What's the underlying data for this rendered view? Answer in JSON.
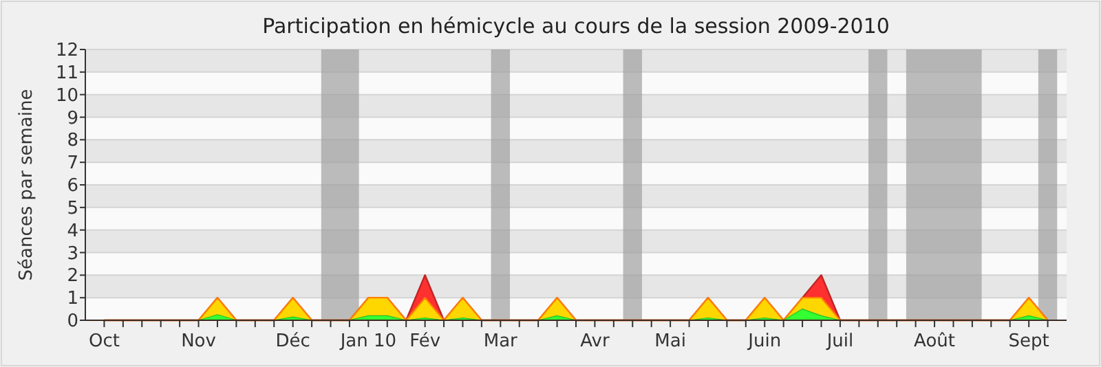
{
  "chart_data": {
    "type": "area",
    "title": "Participation en hémicycle au cours de la session 2009-2010",
    "ylabel": "Séances par semaine",
    "x": [
      "2009-10-05",
      "2009-10-12",
      "2009-10-19",
      "2009-10-26",
      "2009-11-02",
      "2009-11-09",
      "2009-11-16",
      "2009-11-23",
      "2009-11-30",
      "2009-12-07",
      "2009-12-14",
      "2009-12-21",
      "2009-12-28",
      "2010-01-04",
      "2010-01-11",
      "2010-01-18",
      "2010-01-25",
      "2010-02-01",
      "2010-02-08",
      "2010-02-15",
      "2010-02-22",
      "2010-03-01",
      "2010-03-08",
      "2010-03-15",
      "2010-03-22",
      "2010-03-29",
      "2010-04-05",
      "2010-04-12",
      "2010-04-19",
      "2010-04-26",
      "2010-05-03",
      "2010-05-10",
      "2010-05-17",
      "2010-05-24",
      "2010-05-31",
      "2010-06-07",
      "2010-06-14",
      "2010-06-21",
      "2010-06-28",
      "2010-07-05",
      "2010-07-12",
      "2010-07-19",
      "2010-07-26",
      "2010-08-02",
      "2010-08-09",
      "2010-08-16",
      "2010-08-23",
      "2010-08-30",
      "2010-09-06",
      "2010-09-13",
      "2010-09-20"
    ],
    "series": [
      {
        "color": "#ff3030",
        "values": [
          0,
          0,
          0,
          0,
          0,
          0,
          1,
          0,
          0,
          0,
          1,
          0,
          0,
          0,
          1,
          1,
          0,
          2,
          0,
          1,
          0,
          0,
          0,
          0,
          1,
          0,
          0,
          0,
          0,
          0,
          0,
          0,
          1,
          0,
          0,
          1,
          0,
          1,
          2,
          0,
          0,
          0,
          0,
          0,
          0,
          0,
          0,
          0,
          0,
          1,
          0
        ]
      },
      {
        "color": "#ffd700",
        "values": [
          0,
          0,
          0,
          0,
          0,
          0,
          1,
          0,
          0,
          0,
          1,
          0,
          0,
          0,
          1,
          1,
          0,
          1,
          0,
          1,
          0,
          0,
          0,
          0,
          1,
          0,
          0,
          0,
          0,
          0,
          0,
          0,
          1,
          0,
          0,
          1,
          0,
          1,
          1,
          0,
          0,
          0,
          0,
          0,
          0,
          0,
          0,
          0,
          0,
          1,
          0
        ]
      },
      {
        "color": "#33ff33",
        "values": [
          0,
          0,
          0,
          0,
          0,
          0,
          0.25,
          0,
          0,
          0,
          0.15,
          0,
          0,
          0,
          0.2,
          0.2,
          0,
          0.1,
          0,
          0.1,
          0,
          0,
          0,
          0,
          0.2,
          0,
          0,
          0,
          0,
          0,
          0,
          0,
          0.1,
          0,
          0,
          0.1,
          0,
          0.5,
          0.2,
          0,
          0,
          0,
          0,
          0,
          0,
          0,
          0,
          0,
          0,
          0.2,
          0
        ]
      }
    ],
    "xlim": [
      "2009-09-28",
      "2010-09-27"
    ],
    "xticks": [
      {
        "value": "2009-10-05",
        "label": "Oct"
      },
      {
        "value": "2009-10-12",
        "label": null
      },
      {
        "value": "2009-10-19",
        "label": null
      },
      {
        "value": "2009-10-26",
        "label": null
      },
      {
        "value": "2009-11-02",
        "label": null
      },
      {
        "value": "2009-11-09",
        "label": "Nov"
      },
      {
        "value": "2009-11-16",
        "label": null
      },
      {
        "value": "2009-11-23",
        "label": null
      },
      {
        "value": "2009-11-30",
        "label": null
      },
      {
        "value": "2009-12-07",
        "label": null
      },
      {
        "value": "2009-12-14",
        "label": "Déc"
      },
      {
        "value": "2009-12-21",
        "label": null
      },
      {
        "value": "2009-12-28",
        "label": null
      },
      {
        "value": "2010-01-04",
        "label": null
      },
      {
        "value": "2010-01-11",
        "label": "Jan 10"
      },
      {
        "value": "2010-01-18",
        "label": null
      },
      {
        "value": "2010-01-25",
        "label": null
      },
      {
        "value": "2010-02-01",
        "label": "Fév"
      },
      {
        "value": "2010-02-08",
        "label": null
      },
      {
        "value": "2010-02-15",
        "label": null
      },
      {
        "value": "2010-02-22",
        "label": null
      },
      {
        "value": "2010-03-01",
        "label": "Mar"
      },
      {
        "value": "2010-03-08",
        "label": null
      },
      {
        "value": "2010-03-15",
        "label": null
      },
      {
        "value": "2010-03-22",
        "label": null
      },
      {
        "value": "2010-03-29",
        "label": null
      },
      {
        "value": "2010-04-05",
        "label": "Avr"
      },
      {
        "value": "2010-04-12",
        "label": null
      },
      {
        "value": "2010-04-19",
        "label": null
      },
      {
        "value": "2010-04-26",
        "label": null
      },
      {
        "value": "2010-05-03",
        "label": "Mai"
      },
      {
        "value": "2010-05-10",
        "label": null
      },
      {
        "value": "2010-05-17",
        "label": null
      },
      {
        "value": "2010-05-24",
        "label": null
      },
      {
        "value": "2010-05-31",
        "label": null
      },
      {
        "value": "2010-06-07",
        "label": "Juin"
      },
      {
        "value": "2010-06-14",
        "label": null
      },
      {
        "value": "2010-06-21",
        "label": null
      },
      {
        "value": "2010-06-28",
        "label": null
      },
      {
        "value": "2010-07-05",
        "label": "Juil"
      },
      {
        "value": "2010-07-12",
        "label": null
      },
      {
        "value": "2010-07-19",
        "label": null
      },
      {
        "value": "2010-07-26",
        "label": null
      },
      {
        "value": "2010-08-02",
        "label": null
      },
      {
        "value": "2010-08-09",
        "label": "Août"
      },
      {
        "value": "2010-08-16",
        "label": null
      },
      {
        "value": "2010-08-23",
        "label": null
      },
      {
        "value": "2010-08-30",
        "label": null
      },
      {
        "value": "2010-09-06",
        "label": null
      },
      {
        "value": "2010-09-13",
        "label": "Sept"
      },
      {
        "value": "2010-09-20",
        "label": null
      }
    ],
    "ylim": [
      0,
      12
    ],
    "yticks": [
      0,
      1,
      2,
      3,
      4,
      5,
      6,
      7,
      8,
      9,
      10,
      11,
      12
    ],
    "grid": "y",
    "bands": [
      {
        "axis": "x",
        "from": "2009-12-24T12:00",
        "to": "2010-01-07T12:00",
        "color": "#a0a0a0"
      },
      {
        "axis": "x",
        "from": "2010-02-25T12:00",
        "to": "2010-03-04T12:00",
        "color": "#a0a0a0"
      },
      {
        "axis": "x",
        "from": "2010-04-15T12:00",
        "to": "2010-04-22T12:00",
        "color": "#a0a0a0"
      },
      {
        "axis": "x",
        "from": "2010-07-15T12:00",
        "to": "2010-07-22T12:00",
        "color": "#a0a0a0"
      },
      {
        "axis": "x",
        "from": "2010-07-29T12:00",
        "to": "2010-08-26T12:00",
        "color": "#a0a0a0"
      },
      {
        "axis": "x",
        "from": "2010-09-16T12:00",
        "to": "2010-09-23T12:00",
        "color": "#a0a0a0"
      }
    ]
  }
}
